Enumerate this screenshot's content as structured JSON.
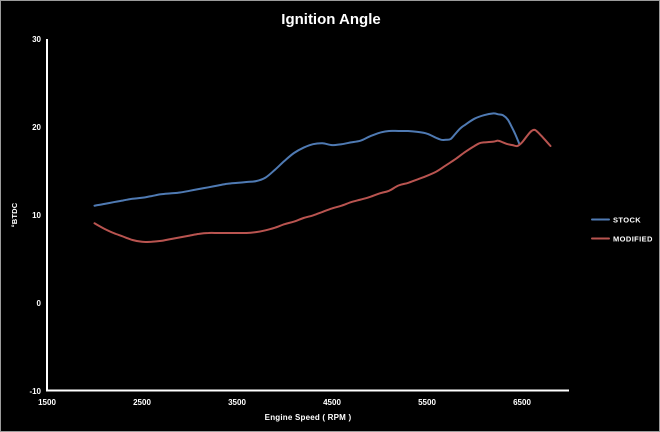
{
  "chart_data": {
    "type": "line",
    "title": "Ignition Angle",
    "xlabel": "Engine Speed ( RPM )",
    "ylabel": "°BTDC",
    "xlim": [
      1500,
      7000
    ],
    "ylim": [
      -10,
      30
    ],
    "x_ticks": [
      "1500",
      "2500",
      "3500",
      "4500",
      "5500",
      "6500"
    ],
    "y_ticks": [
      "30",
      "20",
      "10",
      "0",
      "-10"
    ],
    "grid": false,
    "background": "#000000",
    "legend_position": "right-middle",
    "series": [
      {
        "name": "STOCK",
        "color": "#4f7ab3",
        "x": [
          2000,
          2100,
          2200,
          2300,
          2400,
          2500,
          2600,
          2700,
          2800,
          2900,
          3000,
          3100,
          3200,
          3300,
          3400,
          3500,
          3600,
          3700,
          3800,
          3900,
          4000,
          4100,
          4200,
          4300,
          4400,
          4500,
          4600,
          4700,
          4800,
          4900,
          5000,
          5100,
          5200,
          5300,
          5400,
          5500,
          5600,
          5650,
          5700,
          5750,
          5800,
          5850,
          5900,
          6000,
          6100,
          6200,
          6250,
          6300,
          6350,
          6400,
          6430,
          6470
        ],
        "values": [
          11.1,
          11.3,
          11.5,
          11.7,
          11.9,
          12.0,
          12.2,
          12.4,
          12.5,
          12.6,
          12.8,
          13.0,
          13.2,
          13.4,
          13.6,
          13.7,
          13.8,
          13.9,
          14.3,
          15.2,
          16.2,
          17.1,
          17.7,
          18.1,
          18.2,
          18.0,
          18.1,
          18.3,
          18.5,
          19.0,
          19.4,
          19.6,
          19.6,
          19.6,
          19.5,
          19.3,
          18.8,
          18.6,
          18.6,
          18.7,
          19.3,
          19.9,
          20.3,
          21.0,
          21.4,
          21.6,
          21.5,
          21.4,
          20.9,
          19.9,
          19.2,
          18.2
        ]
      },
      {
        "name": "MODIFIED",
        "color": "#b95450",
        "x": [
          2000,
          2100,
          2200,
          2300,
          2400,
          2500,
          2600,
          2700,
          2800,
          2900,
          3000,
          3100,
          3200,
          3300,
          3400,
          3500,
          3600,
          3700,
          3800,
          3900,
          4000,
          4100,
          4200,
          4300,
          4400,
          4500,
          4600,
          4700,
          4800,
          4900,
          5000,
          5100,
          5200,
          5300,
          5400,
          5500,
          5600,
          5700,
          5800,
          5900,
          6000,
          6050,
          6100,
          6200,
          6250,
          6300,
          6350,
          6400,
          6450,
          6500,
          6550,
          6600,
          6640,
          6700,
          6750,
          6800
        ],
        "values": [
          9.1,
          8.5,
          8.0,
          7.6,
          7.2,
          7.0,
          7.0,
          7.1,
          7.3,
          7.5,
          7.7,
          7.9,
          8.0,
          8.0,
          8.0,
          8.0,
          8.0,
          8.1,
          8.3,
          8.6,
          9.0,
          9.3,
          9.7,
          10.0,
          10.4,
          10.8,
          11.1,
          11.5,
          11.8,
          12.1,
          12.5,
          12.8,
          13.4,
          13.7,
          14.1,
          14.5,
          15.0,
          15.7,
          16.4,
          17.2,
          17.9,
          18.2,
          18.3,
          18.4,
          18.5,
          18.3,
          18.1,
          18.0,
          17.9,
          18.3,
          19.0,
          19.6,
          19.7,
          19.1,
          18.5,
          17.9
        ]
      }
    ]
  }
}
